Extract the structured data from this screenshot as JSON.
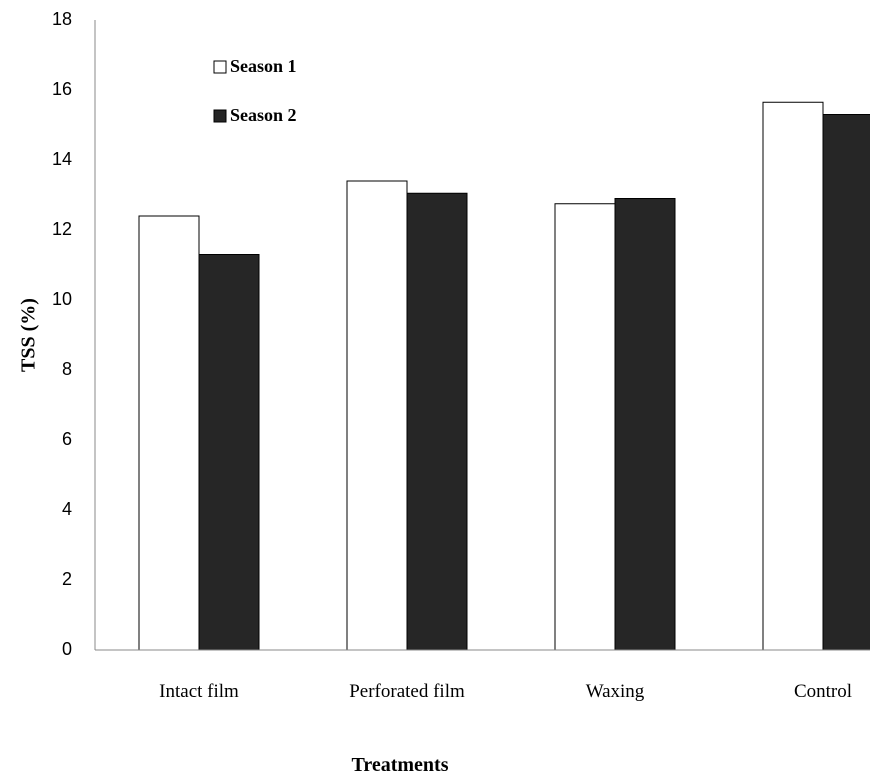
{
  "chart_data": {
    "type": "bar",
    "title": "",
    "xlabel": "Treatments",
    "ylabel": "TSS (%)",
    "ylim": [
      0,
      18
    ],
    "yticks": [
      0,
      2,
      4,
      6,
      8,
      10,
      12,
      14,
      16,
      18
    ],
    "grid": false,
    "legend_position": "top-left",
    "categories": [
      "Intact film",
      "Perforated film",
      "Waxing",
      "Control"
    ],
    "series": [
      {
        "name": "Season 1",
        "color": "#ffffff",
        "values": [
          12.4,
          13.4,
          12.75,
          15.65
        ]
      },
      {
        "name": "Season 2",
        "color": "#262626",
        "values": [
          11.3,
          13.05,
          12.9,
          15.3
        ]
      }
    ]
  }
}
